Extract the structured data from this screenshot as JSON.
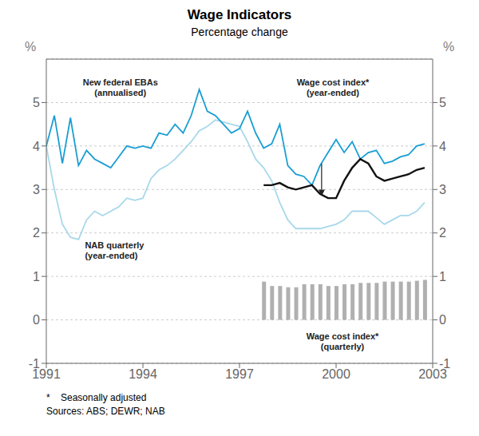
{
  "chart_data": {
    "type": "line",
    "title": "Wage Indicators",
    "subtitle": "Percentage change",
    "ylabel": "%",
    "y2label": "%",
    "x": [
      1991.0,
      1991.25,
      1991.5,
      1991.75,
      1992.0,
      1992.25,
      1992.5,
      1992.75,
      1993.0,
      1993.25,
      1993.5,
      1993.75,
      1994.0,
      1994.25,
      1994.5,
      1994.75,
      1995.0,
      1995.25,
      1995.5,
      1995.75,
      1996.0,
      1996.25,
      1996.5,
      1996.75,
      1997.0,
      1997.25,
      1997.5,
      1997.75,
      1998.0,
      1998.25,
      1998.5,
      1998.75,
      1999.0,
      1999.25,
      1999.5,
      1999.75,
      2000.0,
      2000.25,
      2000.5,
      2000.75,
      2001.0,
      2001.25,
      2001.5,
      2001.75,
      2002.0,
      2002.25,
      2002.5,
      2002.75
    ],
    "series": [
      {
        "type": "line",
        "color": "#a8d8ea",
        "values": [
          4.0,
          3.0,
          2.2,
          1.9,
          1.85,
          2.3,
          2.5,
          2.4,
          2.5,
          2.6,
          2.8,
          2.75,
          2.8,
          3.25,
          3.45,
          3.55,
          3.7,
          3.9,
          4.1,
          4.35,
          4.45,
          4.6,
          4.55,
          4.5,
          4.45,
          4.1,
          3.7,
          3.5,
          3.2,
          2.7,
          2.3,
          2.1,
          2.1,
          2.1,
          2.1,
          2.15,
          2.2,
          2.3,
          2.5,
          2.5,
          2.5,
          2.35,
          2.2,
          2.3,
          2.4,
          2.4,
          2.5,
          2.7
        ]
      },
      {
        "type": "line",
        "color": "#1a9ed4",
        "values": [
          4.0,
          4.7,
          3.6,
          4.65,
          3.55,
          3.9,
          3.7,
          3.6,
          3.5,
          3.75,
          4.0,
          3.95,
          4.0,
          3.95,
          4.3,
          4.25,
          4.5,
          4.3,
          4.7,
          5.3,
          4.8,
          4.7,
          4.5,
          4.3,
          4.4,
          4.8,
          4.3,
          3.95,
          4.05,
          4.5,
          3.55,
          3.35,
          3.3,
          3.1,
          3.55,
          3.85,
          4.15,
          3.85,
          4.1,
          3.7,
          3.85,
          3.9,
          3.6,
          3.65,
          3.75,
          3.8,
          4.0,
          4.05
        ]
      },
      {
        "type": "bar",
        "color": "#b0b0b0",
        "values": [
          null,
          null,
          null,
          null,
          null,
          null,
          null,
          null,
          null,
          null,
          null,
          null,
          null,
          null,
          null,
          null,
          null,
          null,
          null,
          null,
          null,
          null,
          null,
          null,
          null,
          null,
          null,
          0.88,
          0.78,
          0.78,
          0.75,
          0.75,
          0.82,
          0.82,
          0.82,
          0.78,
          0.78,
          0.82,
          0.82,
          0.85,
          0.85,
          0.85,
          0.88,
          0.88,
          0.88,
          0.88,
          0.9,
          0.92
        ]
      },
      {
        "type": "line",
        "color": "#111111",
        "values": [
          null,
          null,
          null,
          null,
          null,
          null,
          null,
          null,
          null,
          null,
          null,
          null,
          null,
          null,
          null,
          null,
          null,
          null,
          null,
          null,
          null,
          null,
          null,
          null,
          null,
          null,
          null,
          3.1,
          3.1,
          3.15,
          3.05,
          3.0,
          3.05,
          3.1,
          2.9,
          2.8,
          2.8,
          3.2,
          3.5,
          3.7,
          3.6,
          3.3,
          3.2,
          3.25,
          3.3,
          3.35,
          3.45,
          3.5
        ]
      }
    ],
    "xlim": [
      1991.0,
      2003.0
    ],
    "xticks": [
      1991,
      1994,
      1997,
      2000,
      2003
    ],
    "ylim": [
      -1,
      6
    ],
    "yticks": [
      -1,
      0,
      1,
      2,
      3,
      4,
      5
    ],
    "y2lim": [
      -1,
      6
    ],
    "y2ticks": [
      -1,
      0,
      1,
      2,
      3,
      4,
      5
    ],
    "grid": true,
    "annotations": [
      {
        "lines": [
          "New federal EBAs",
          "(annualised)"
        ]
      },
      {
        "lines": [
          "NAB quarterly",
          "(year-ended)"
        ]
      },
      {
        "lines": [
          "Wage cost index*",
          "(year-ended)"
        ],
        "arrow": {
          "x": 1999.55,
          "y_start": 3.6,
          "y_end": 2.85
        }
      },
      {
        "lines": [
          "Wage cost index*",
          "(quarterly)"
        ]
      }
    ],
    "notes": [
      "*    Seasonally adjusted",
      "Sources: ABS; DEWR; NAB"
    ]
  }
}
